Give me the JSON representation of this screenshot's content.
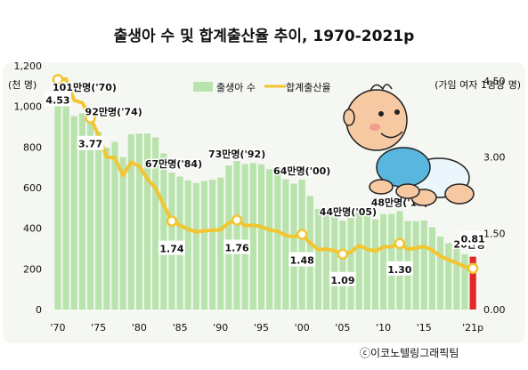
{
  "title": "출생아 수 및 합계출산율 추이, 1970-2021p",
  "credit": "ⓒ이코노텔링그래픽팀",
  "colors": {
    "bar": "#b9e3ac",
    "bar_highlight": "#e02a2a",
    "line": "#f2c531",
    "marker_fill": "#ffffff",
    "panel": "#f5f7f2",
    "label_box": "#ffffff"
  },
  "chart_data": {
    "type": "bar",
    "combo": "bar+line",
    "left_axis": {
      "unit_label": "(천 명)",
      "ylim": [
        0,
        1200
      ],
      "ticks": [
        "0",
        "200",
        "400",
        "600",
        "800",
        "1,000",
        "1,200"
      ]
    },
    "right_axis": {
      "unit_label": "(가임 여자 1명당 명)",
      "ylim": [
        0,
        4.8
      ],
      "ticks": [
        "0.00",
        "1.50",
        "3.00",
        "4.50"
      ]
    },
    "x_ticks": [
      "'70",
      "'75",
      "'80",
      "'85",
      "'90",
      "'95",
      "'00",
      "'05",
      "'10",
      "'15",
      "'21p"
    ],
    "x_tick_years": [
      1970,
      1975,
      1980,
      1985,
      1990,
      1995,
      2000,
      2005,
      2010,
      2015,
      2021
    ],
    "years": [
      1970,
      1971,
      1972,
      1973,
      1974,
      1975,
      1976,
      1977,
      1978,
      1979,
      1980,
      1981,
      1982,
      1983,
      1984,
      1985,
      1986,
      1987,
      1988,
      1989,
      1990,
      1991,
      1992,
      1993,
      1994,
      1995,
      1996,
      1997,
      1998,
      1999,
      2000,
      2001,
      2002,
      2003,
      2004,
      2005,
      2006,
      2007,
      2008,
      2009,
      2010,
      2011,
      2012,
      2013,
      2014,
      2015,
      2016,
      2017,
      2018,
      2019,
      2020,
      2021
    ],
    "series": [
      {
        "name": "출생아 수",
        "kind": "bar",
        "values": [
          1007,
          1025,
          953,
          966,
          922,
          875,
          797,
          826,
          751,
          863,
          866,
          867,
          848,
          769,
          674,
          655,
          636,
          623,
          633,
          639,
          650,
          709,
          731,
          716,
          721,
          715,
          691,
          675,
          641,
          620,
          640,
          559,
          495,
          491,
          476,
          438,
          451,
          497,
          466,
          444,
          470,
          471,
          485,
          436,
          435,
          438,
          406,
          358,
          327,
          303,
          272,
          260
        ]
      },
      {
        "name": "합계출산율",
        "kind": "line",
        "values": [
          4.53,
          4.54,
          4.12,
          4.07,
          3.77,
          3.43,
          3.0,
          2.99,
          2.64,
          2.9,
          2.82,
          2.57,
          2.39,
          2.06,
          1.74,
          1.66,
          1.58,
          1.53,
          1.55,
          1.56,
          1.57,
          1.71,
          1.76,
          1.65,
          1.66,
          1.63,
          1.57,
          1.54,
          1.46,
          1.43,
          1.48,
          1.31,
          1.18,
          1.19,
          1.16,
          1.09,
          1.13,
          1.26,
          1.19,
          1.15,
          1.23,
          1.24,
          1.3,
          1.19,
          1.21,
          1.24,
          1.17,
          1.05,
          0.98,
          0.92,
          0.84,
          0.81
        ]
      }
    ],
    "highlight_year": 2021,
    "bar_annotations": [
      {
        "year": 1970,
        "text": "101만명('70)"
      },
      {
        "year": 1974,
        "text": "92만명('74)"
      },
      {
        "year": 1984,
        "text": "67만명('84)"
      },
      {
        "year": 1992,
        "text": "73만명('92)"
      },
      {
        "year": 2000,
        "text": "64만명('00)"
      },
      {
        "year": 2005,
        "text": "44만명('05)"
      },
      {
        "year": 2012,
        "text": "48만명('12)"
      },
      {
        "year": 2021,
        "text": "26만명"
      }
    ],
    "rate_annotations": [
      {
        "year": 1970,
        "text": "4.53"
      },
      {
        "year": 1974,
        "text": "3.77"
      },
      {
        "year": 1984,
        "text": "1.74"
      },
      {
        "year": 1992,
        "text": "1.76"
      },
      {
        "year": 2000,
        "text": "1.48"
      },
      {
        "year": 2005,
        "text": "1.09"
      },
      {
        "year": 2012,
        "text": "1.30"
      },
      {
        "year": 2021,
        "text": "0.81"
      }
    ],
    "marker_years": [
      1970,
      1974,
      1984,
      1992,
      2000,
      2005,
      2012,
      2021
    ]
  }
}
